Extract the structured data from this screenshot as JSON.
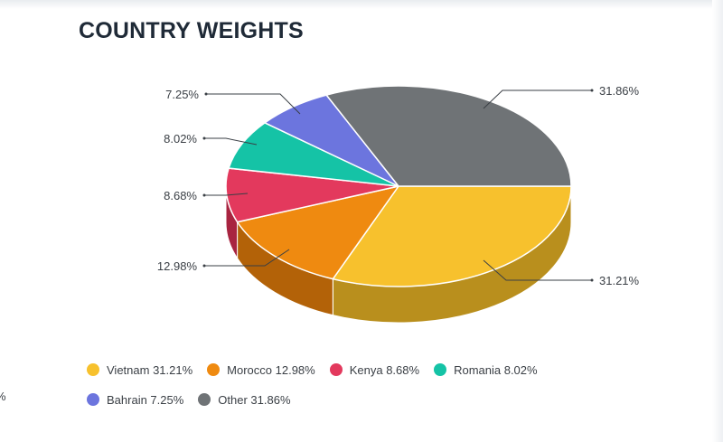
{
  "title": "COUNTRY WEIGHTS",
  "edge_fragment": "%",
  "chart_data": {
    "type": "pie",
    "title": "COUNTRY WEIGHTS",
    "legend_position": "bottom",
    "slices": [
      {
        "name": "Vietnam",
        "value": 31.21,
        "label": "31.21%",
        "legend": "Vietnam 31.21%",
        "color": "#f7c12d",
        "side": "#b98f1d"
      },
      {
        "name": "Morocco",
        "value": 12.98,
        "label": "12.98%",
        "legend": "Morocco 12.98%",
        "color": "#ef8a10",
        "side": "#b36208"
      },
      {
        "name": "Kenya",
        "value": 8.68,
        "label": "8.68%",
        "legend": "Kenya 8.68%",
        "color": "#e3395d",
        "side": "#a82440"
      },
      {
        "name": "Romania",
        "value": 8.02,
        "label": "8.02%",
        "legend": "Romania 8.02%",
        "color": "#15c3a6",
        "side": "#0e8a75"
      },
      {
        "name": "Bahrain",
        "value": 7.25,
        "label": "7.25%",
        "legend": "Bahrain 7.25%",
        "color": "#6c75de",
        "side": "#4a52a6"
      },
      {
        "name": "Other",
        "value": 31.86,
        "label": "31.86%",
        "legend": "Other 31.86%",
        "color": "#6f7376",
        "side": "#4a4d50"
      }
    ]
  }
}
